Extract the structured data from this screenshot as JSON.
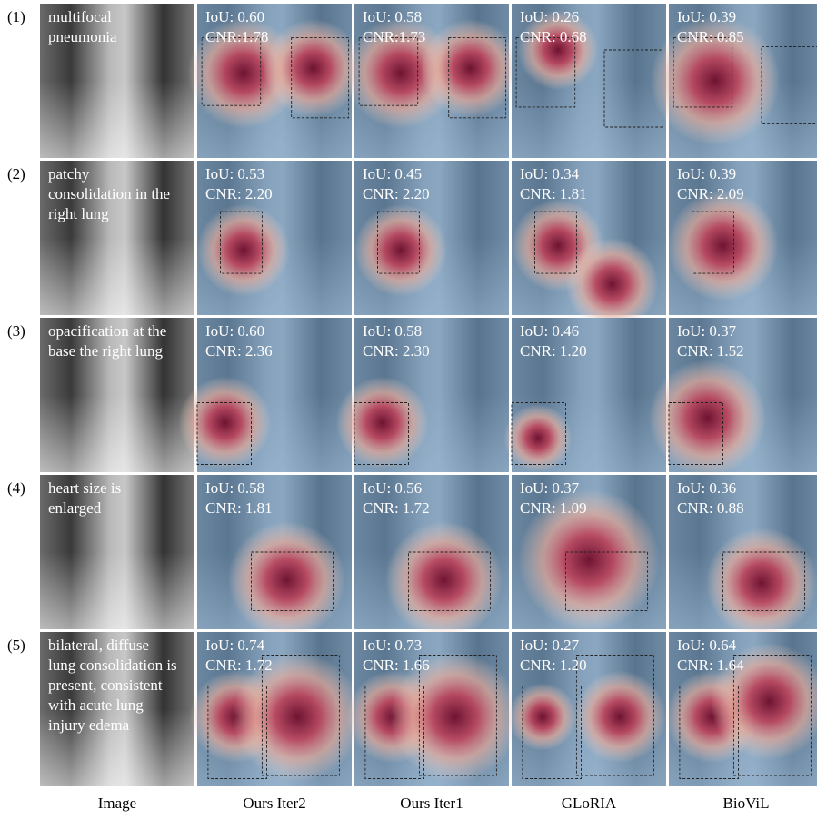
{
  "rows": [
    {
      "label": "(1)",
      "caption": [
        "multifocal",
        "pneumonia"
      ],
      "metrics": [
        [
          "IoU: 0.60",
          "CNR:1.78"
        ],
        [
          "IoU: 0.58",
          "CNR:1.73"
        ],
        [
          "IoU: 0.26",
          "CNR: 0.68"
        ],
        [
          "IoU: 0.39",
          "CNR: 0.85"
        ]
      ]
    },
    {
      "label": "(2)",
      "caption": [
        "patchy",
        "consolidation in the",
        "right lung"
      ],
      "metrics": [
        [
          "IoU: 0.53",
          "CNR: 2.20"
        ],
        [
          "IoU: 0.45",
          "CNR: 2.20"
        ],
        [
          "IoU: 0.34",
          "CNR: 1.81"
        ],
        [
          "IoU: 0.39",
          "CNR: 2.09"
        ]
      ]
    },
    {
      "label": "(3)",
      "caption": [
        "opacification at the",
        "base the right lung"
      ],
      "metrics": [
        [
          "IoU: 0.60",
          "CNR: 2.36"
        ],
        [
          "IoU: 0.58",
          "CNR: 2.30"
        ],
        [
          "IoU: 0.46",
          "CNR: 1.20"
        ],
        [
          "IoU: 0.37",
          "CNR: 1.52"
        ]
      ]
    },
    {
      "label": "(4)",
      "caption": [
        "heart size is",
        "enlarged"
      ],
      "metrics": [
        [
          "IoU: 0.58",
          "CNR: 1.81"
        ],
        [
          "IoU: 0.56",
          "CNR: 1.72"
        ],
        [
          "IoU: 0.37",
          "CNR: 1.09"
        ],
        [
          "IoU: 0.36",
          "CNR: 0.88"
        ]
      ]
    },
    {
      "label": "(5)",
      "caption": [
        "bilateral, diffuse",
        "lung consolidation is",
        "present, consistent",
        "with acute lung",
        "injury edema"
      ],
      "metrics": [
        [
          "IoU: 0.74",
          "CNR: 1.72"
        ],
        [
          "IoU: 0.73",
          "CNR: 1.66"
        ],
        [
          "IoU: 0.27",
          "CNR: 1.20"
        ],
        [
          "IoU: 0.64",
          "CNR: 1.64"
        ]
      ]
    }
  ],
  "column_headers": [
    "Image",
    "Ours Iter2",
    "Ours Iter1",
    "GLoRIA",
    "BioViL"
  ]
}
